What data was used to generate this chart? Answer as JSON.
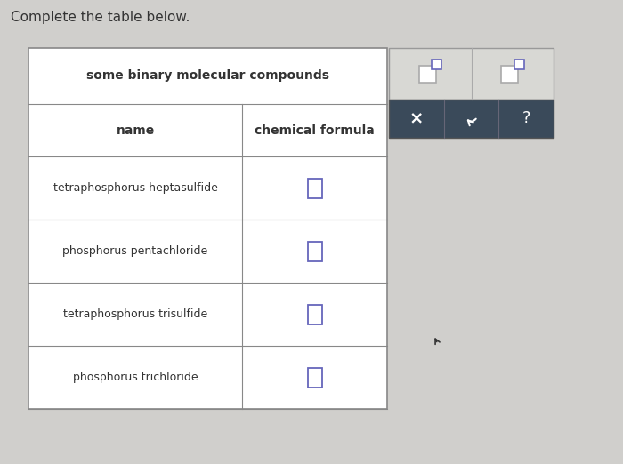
{
  "title": "Complete the table below.",
  "table_title": "some binary molecular compounds",
  "col_headers": [
    "name",
    "chemical formula"
  ],
  "rows": [
    "tetraphosphorus heptasulfide",
    "phosphorus pentachloride",
    "tetraphosphorus trisulfide",
    "phosphorus trichloride"
  ],
  "bg_color": "#d0cfcc",
  "table_bg": "#ffffff",
  "border_color": "#888888",
  "text_color": "#333333",
  "widget_dark": "#3a4a5a",
  "widget_light": "#d8d8d4",
  "input_box_color": "#6666bb",
  "icon_gray": "#aaaaaa",
  "icon_purple": "#6666bb"
}
